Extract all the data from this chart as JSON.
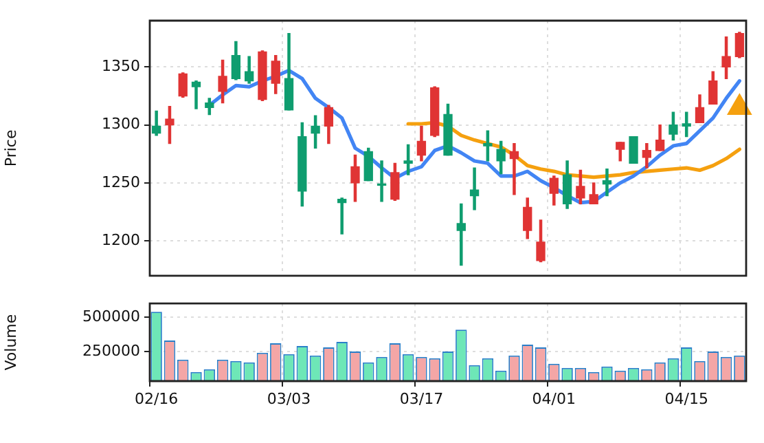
{
  "chart_data": [
    {
      "type": "candlestick",
      "ylabel": "Price",
      "tick_labels": "y",
      "grid": true,
      "ylim": [
        1170,
        1390
      ],
      "yticks": [
        1200,
        1250,
        1300,
        1350
      ],
      "categories": [
        null,
        null,
        null,
        null,
        null,
        null,
        null,
        null,
        null,
        null,
        null,
        null,
        null,
        null,
        null,
        null,
        null,
        null,
        null,
        null,
        null,
        null,
        null,
        null,
        null,
        null,
        null,
        null,
        null,
        null,
        null,
        null,
        null,
        null,
        null,
        null,
        null,
        null,
        null,
        null,
        null,
        null,
        null,
        null,
        null
      ],
      "ohlc": [
        [
          1293,
          1312,
          1291,
          1299
        ],
        [
          1305,
          1316,
          1284,
          1300
        ],
        [
          1344,
          1345,
          1324,
          1325
        ],
        [
          1333,
          1338,
          1314,
          1337
        ],
        [
          1315,
          1323,
          1309,
          1319
        ],
        [
          1342,
          1356,
          1319,
          1329
        ],
        [
          1340,
          1372,
          1339,
          1360
        ],
        [
          1338,
          1359,
          1336,
          1346
        ],
        [
          1363,
          1364,
          1321,
          1322
        ],
        [
          1355,
          1360,
          1327,
          1336
        ],
        [
          1313,
          1379,
          1313,
          1340
        ],
        [
          1243,
          1302,
          1230,
          1290
        ],
        [
          1293,
          1308,
          1280,
          1299
        ],
        [
          1315,
          1317,
          1284,
          1299
        ],
        [
          1233,
          1237,
          1206,
          1236
        ],
        [
          1264,
          1274,
          1234,
          1250
        ],
        [
          1252,
          1280,
          1252,
          1277
        ],
        [
          1248,
          1269,
          1234,
          1249
        ],
        [
          1259,
          1267,
          1235,
          1236
        ],
        [
          1267,
          1283,
          1257,
          1269
        ],
        [
          1286,
          1299,
          1269,
          1274
        ],
        [
          1332,
          1333,
          1290,
          1291
        ],
        [
          1274,
          1318,
          1274,
          1309
        ],
        [
          1209,
          1232,
          1179,
          1215
        ],
        [
          1239,
          1263,
          1227,
          1244
        ],
        [
          1282,
          1295,
          1269,
          1284
        ],
        [
          1269,
          1286,
          1258,
          1279
        ],
        [
          1277,
          1284,
          1240,
          1271
        ],
        [
          1229,
          1237,
          1202,
          1209
        ],
        [
          1199,
          1218,
          1182,
          1183
        ],
        [
          1254,
          1256,
          1231,
          1241
        ],
        [
          1232,
          1269,
          1228,
          1257
        ],
        [
          1247,
          1261,
          1232,
          1237
        ],
        [
          1240,
          1250,
          1232,
          1232
        ],
        [
          1249,
          1262,
          1239,
          1252
        ],
        [
          1285,
          1285,
          1269,
          1279
        ],
        [
          1267,
          1290,
          1267,
          1290
        ],
        [
          1278,
          1284,
          1263,
          1272
        ],
        [
          1287,
          1300,
          1278,
          1278
        ],
        [
          1292,
          1311,
          1287,
          1300
        ],
        [
          1299,
          1311,
          1290,
          1301
        ],
        [
          1315,
          1326,
          1302,
          1302
        ],
        [
          1338,
          1346,
          1318,
          1318
        ],
        [
          1359,
          1376,
          1340,
          1350
        ],
        [
          1379,
          1380,
          1358,
          1359
        ]
      ],
      "colors": [
        "#0f9d6f",
        "#e03434",
        "#e03434",
        "#0f9d6f",
        "#0f9d6f",
        "#e03434",
        "#0f9d6f",
        "#0f9d6f",
        "#e03434",
        "#e03434",
        "#0f9d6f",
        "#0f9d6f",
        "#0f9d6f",
        "#e03434",
        "#0f9d6f",
        "#e03434",
        "#0f9d6f",
        "#0f9d6f",
        "#e03434",
        "#0f9d6f",
        "#e03434",
        "#e03434",
        "#0f9d6f",
        "#0f9d6f",
        "#0f9d6f",
        "#0f9d6f",
        "#0f9d6f",
        "#e03434",
        "#e03434",
        "#e03434",
        "#e03434",
        "#0f9d6f",
        "#e03434",
        "#e03434",
        "#0f9d6f",
        "#e03434",
        "#0f9d6f",
        "#e03434",
        "#e03434",
        "#0f9d6f",
        "#0f9d6f",
        "#e03434",
        "#e03434",
        "#e03434",
        "#e03434"
      ],
      "series": [
        {
          "type": "line",
          "color": "#4285f4",
          "values": [
            null,
            null,
            null,
            null,
            1317,
            1326,
            1334,
            1333,
            1338,
            1342,
            1347,
            1340,
            1323,
            1315,
            1306,
            1280,
            1273,
            1263,
            1254,
            1260,
            1264,
            1278,
            1282,
            1276,
            1269,
            1267,
            1256,
            1256,
            1260,
            1252,
            1246,
            1239,
            1233,
            1234,
            1242,
            1250,
            1256,
            1264,
            1274,
            1282,
            1284,
            1295,
            1306,
            1323,
            1338
          ]
        },
        {
          "type": "line",
          "color": "#f5a00f",
          "values": [
            null,
            null,
            null,
            null,
            null,
            null,
            null,
            null,
            null,
            null,
            null,
            null,
            null,
            null,
            null,
            null,
            null,
            null,
            null,
            1301,
            1301,
            1302,
            1299,
            1291,
            1287,
            1284,
            1281,
            1274,
            1265,
            1262,
            1260,
            1257,
            1256,
            1255,
            1256,
            1257,
            1259,
            1260,
            1261,
            1262,
            1263,
            1261,
            1265,
            1271,
            1279
          ]
        },
        {
          "type": "scatter",
          "color": "#f5a00f",
          "marker": "triangle",
          "values": [
            null,
            null,
            null,
            null,
            null,
            null,
            null,
            null,
            null,
            null,
            null,
            null,
            null,
            null,
            null,
            null,
            null,
            null,
            null,
            null,
            null,
            null,
            null,
            null,
            null,
            null,
            null,
            null,
            null,
            null,
            null,
            null,
            null,
            null,
            null,
            null,
            null,
            null,
            null,
            null,
            null,
            null,
            null,
            null,
            1315
          ]
        }
      ]
    },
    {
      "type": "bar",
      "ylabel": "Volume",
      "grid": true,
      "ylim": [
        35000,
        600000
      ],
      "yticks": [
        250000,
        500000
      ],
      "categories": [
        "02/16",
        null,
        null,
        null,
        null,
        null,
        null,
        null,
        null,
        null,
        "03/03",
        null,
        null,
        null,
        null,
        null,
        null,
        null,
        null,
        null,
        "03/17",
        null,
        null,
        null,
        null,
        null,
        null,
        null,
        null,
        null,
        "04/01",
        null,
        null,
        null,
        null,
        null,
        null,
        null,
        null,
        null,
        "04/15",
        null,
        null,
        null,
        null
      ],
      "values": [
        540000,
        330000,
        190000,
        100000,
        120000,
        190000,
        180000,
        170000,
        240000,
        310000,
        230000,
        290000,
        220000,
        280000,
        320000,
        250000,
        170000,
        210000,
        310000,
        230000,
        210000,
        200000,
        250000,
        410000,
        150000,
        200000,
        110000,
        220000,
        300000,
        280000,
        160000,
        130000,
        130000,
        100000,
        140000,
        110000,
        130000,
        120000,
        170000,
        200000,
        280000,
        180000,
        250000,
        210000,
        220000
      ],
      "colors": [
        "#6ee7b7",
        "#f4a6a6",
        "#f4a6a6",
        "#6ee7b7",
        "#6ee7b7",
        "#f4a6a6",
        "#6ee7b7",
        "#6ee7b7",
        "#f4a6a6",
        "#f4a6a6",
        "#6ee7b7",
        "#6ee7b7",
        "#6ee7b7",
        "#f4a6a6",
        "#6ee7b7",
        "#f4a6a6",
        "#6ee7b7",
        "#6ee7b7",
        "#f4a6a6",
        "#6ee7b7",
        "#f4a6a6",
        "#f4a6a6",
        "#6ee7b7",
        "#6ee7b7",
        "#6ee7b7",
        "#6ee7b7",
        "#6ee7b7",
        "#f4a6a6",
        "#f4a6a6",
        "#f4a6a6",
        "#f4a6a6",
        "#6ee7b7",
        "#f4a6a6",
        "#f4a6a6",
        "#6ee7b7",
        "#f4a6a6",
        "#6ee7b7",
        "#f4a6a6",
        "#f4a6a6",
        "#6ee7b7",
        "#6ee7b7",
        "#f4a6a6",
        "#f4a6a6",
        "#f4a6a6",
        "#f4a6a6"
      ]
    }
  ]
}
